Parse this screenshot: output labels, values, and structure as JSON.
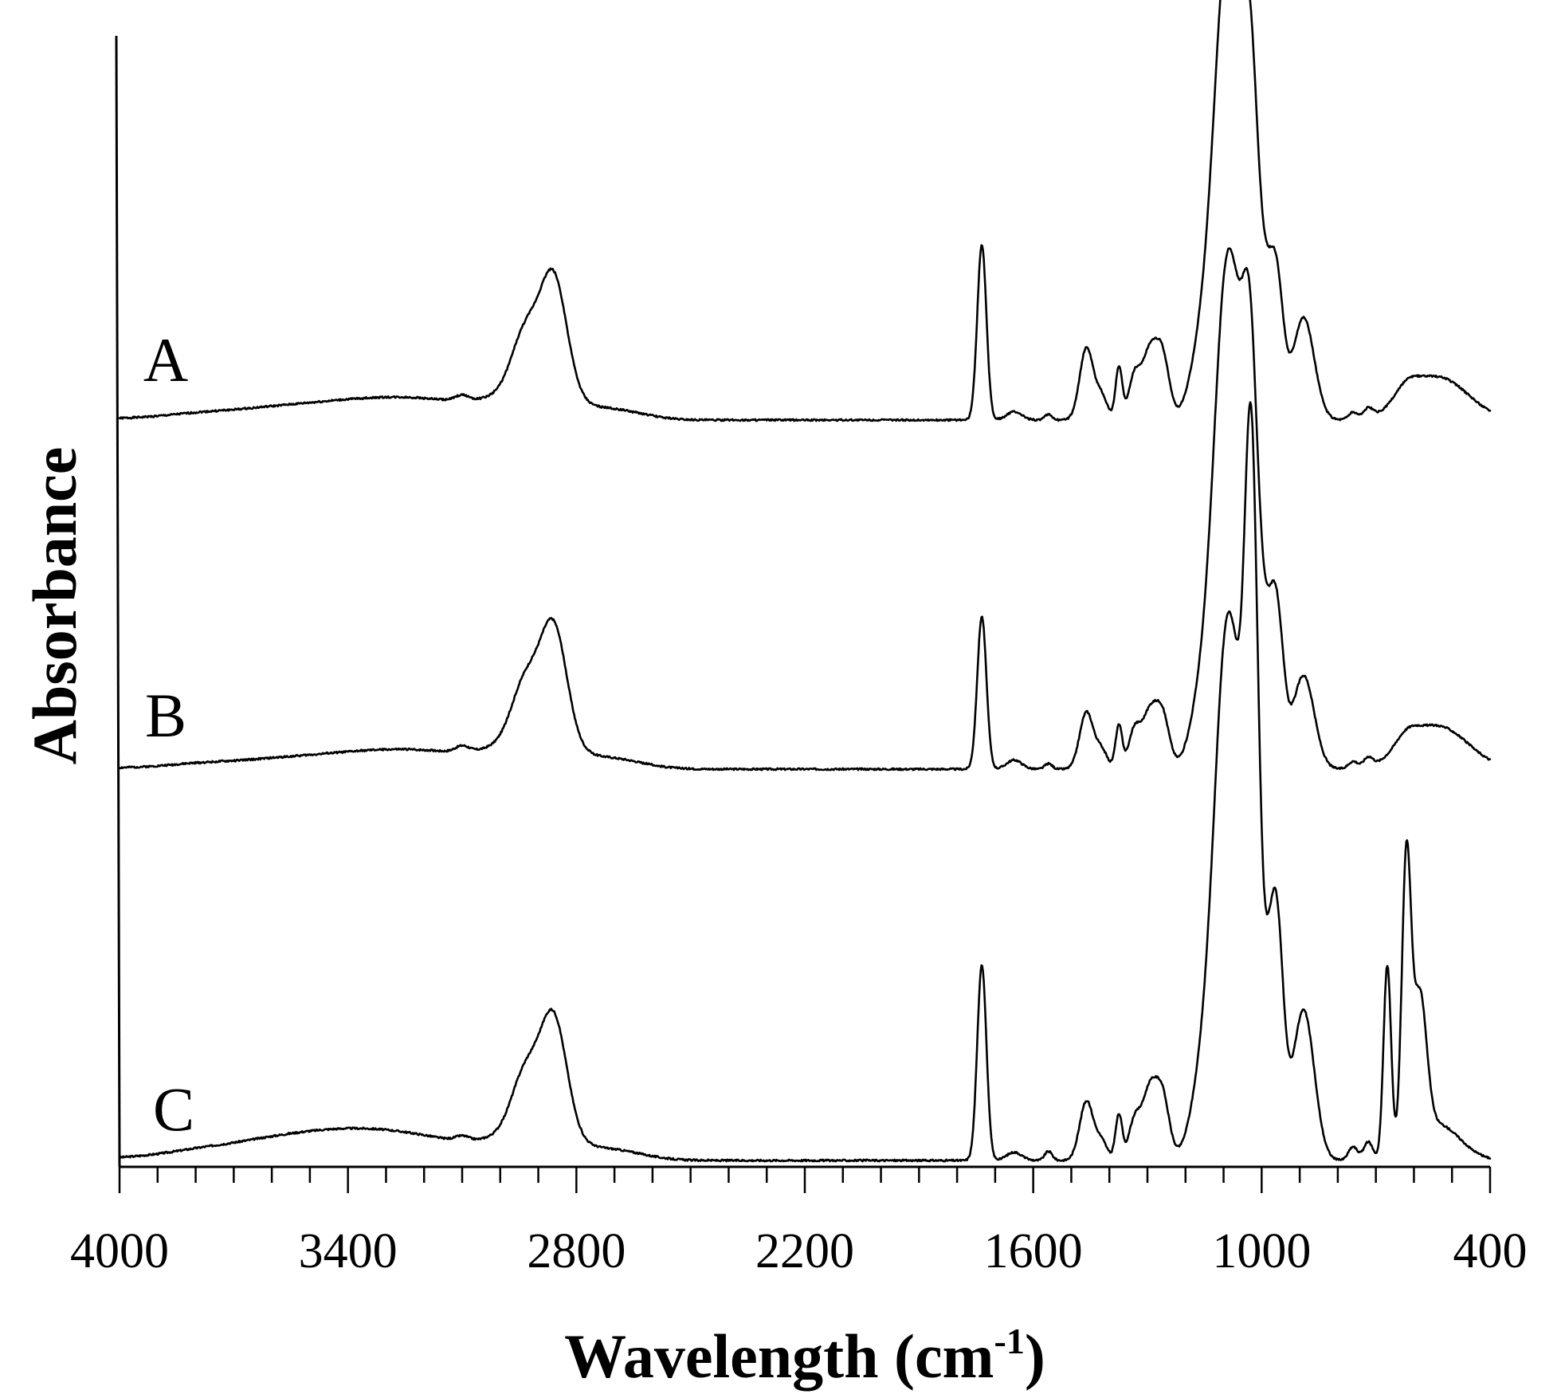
{
  "chart_data": {
    "type": "line",
    "xlabel": "Wavelength (cm",
    "xlabel_superscript": "-1",
    "xlabel_suffix": ")",
    "ylabel": "Absorbance",
    "xlim": [
      4000,
      400
    ],
    "x_reversed": true,
    "y_ticks_shown": false,
    "grid": false,
    "line_color": "#000000",
    "x_ticks": [
      4000,
      3400,
      2800,
      2200,
      1600,
      1000,
      400
    ],
    "x_tick_labels": [
      "4000",
      "3400",
      "2800",
      "2200",
      "1600",
      "1000",
      "400"
    ],
    "series": [
      {
        "name": "A",
        "baseline": 0.0,
        "peaks": [
          [
            3800,
            0.002,
            60
          ],
          [
            3500,
            0.03,
            250
          ],
          [
            3200,
            0.033,
            180
          ],
          [
            3100,
            0.012,
            18
          ],
          [
            2935,
            0.12,
            35
          ],
          [
            2860,
            0.255,
            35
          ],
          [
            2910,
            0.06,
            90
          ],
          [
            2700,
            0.02,
            80
          ],
          [
            1735,
            0.385,
            12
          ],
          [
            1650,
            0.018,
            20
          ],
          [
            1560,
            0.012,
            10
          ],
          [
            1460,
            0.158,
            18
          ],
          [
            1420,
            0.05,
            15
          ],
          [
            1375,
            0.115,
            9
          ],
          [
            1335,
            0.09,
            15
          ],
          [
            1295,
            0.145,
            20
          ],
          [
            1260,
            0.13,
            18
          ],
          [
            1160,
            0.12,
            30
          ],
          [
            1100,
            0.42,
            30
          ],
          [
            1068,
            0.74,
            45
          ],
          [
            1030,
            0.33,
            18
          ],
          [
            990,
            0.15,
            25
          ],
          [
            960,
            0.23,
            18
          ],
          [
            890,
            0.225,
            28
          ],
          [
            760,
            0.015,
            12
          ],
          [
            720,
            0.02,
            12
          ],
          [
            620,
            0.03,
            30
          ],
          [
            540,
            0.095,
            80
          ]
        ]
      },
      {
        "name": "B",
        "baseline": 0.0,
        "peaks": [
          [
            3800,
            0.002,
            60
          ],
          [
            3500,
            0.024,
            250
          ],
          [
            3200,
            0.03,
            180
          ],
          [
            3100,
            0.013,
            18
          ],
          [
            2935,
            0.12,
            35
          ],
          [
            2860,
            0.255,
            35
          ],
          [
            2910,
            0.06,
            90
          ],
          [
            2700,
            0.02,
            80
          ],
          [
            1735,
            0.335,
            12
          ],
          [
            1650,
            0.02,
            20
          ],
          [
            1560,
            0.012,
            10
          ],
          [
            1460,
            0.125,
            18
          ],
          [
            1420,
            0.04,
            15
          ],
          [
            1375,
            0.095,
            9
          ],
          [
            1335,
            0.08,
            15
          ],
          [
            1295,
            0.12,
            20
          ],
          [
            1260,
            0.11,
            18
          ],
          [
            1160,
            0.11,
            30
          ],
          [
            1100,
            0.44,
            30
          ],
          [
            1068,
            0.8,
            45
          ],
          [
            1030,
            0.42,
            18
          ],
          [
            990,
            0.14,
            25
          ],
          [
            960,
            0.27,
            18
          ],
          [
            890,
            0.205,
            28
          ],
          [
            760,
            0.015,
            12
          ],
          [
            720,
            0.02,
            12
          ],
          [
            620,
            0.03,
            30
          ],
          [
            540,
            0.095,
            80
          ]
        ]
      },
      {
        "name": "C",
        "baseline": 0.0,
        "peaks": [
          [
            3800,
            0.002,
            60
          ],
          [
            3500,
            0.05,
            250
          ],
          [
            3250,
            0.032,
            200
          ],
          [
            3100,
            0.01,
            18
          ],
          [
            2935,
            0.12,
            35
          ],
          [
            2860,
            0.255,
            35
          ],
          [
            2910,
            0.06,
            90
          ],
          [
            2700,
            0.02,
            80
          ],
          [
            1735,
            0.43,
            12
          ],
          [
            1650,
            0.018,
            20
          ],
          [
            1560,
            0.02,
            10
          ],
          [
            1460,
            0.13,
            18
          ],
          [
            1420,
            0.04,
            15
          ],
          [
            1375,
            0.1,
            9
          ],
          [
            1335,
            0.08,
            15
          ],
          [
            1295,
            0.15,
            20
          ],
          [
            1260,
            0.13,
            18
          ],
          [
            1160,
            0.12,
            30
          ],
          [
            1100,
            0.46,
            30
          ],
          [
            1068,
            0.85,
            45
          ],
          [
            1035,
            0.55,
            14
          ],
          [
            1020,
            0.6,
            14
          ],
          [
            990,
            0.2,
            25
          ],
          [
            960,
            0.42,
            18
          ],
          [
            890,
            0.33,
            28
          ],
          [
            760,
            0.03,
            12
          ],
          [
            720,
            0.04,
            12
          ],
          [
            670,
            0.42,
            10
          ],
          [
            620,
            0.62,
            12
          ],
          [
            585,
            0.31,
            18
          ],
          [
            540,
            0.08,
            60
          ]
        ]
      }
    ]
  }
}
